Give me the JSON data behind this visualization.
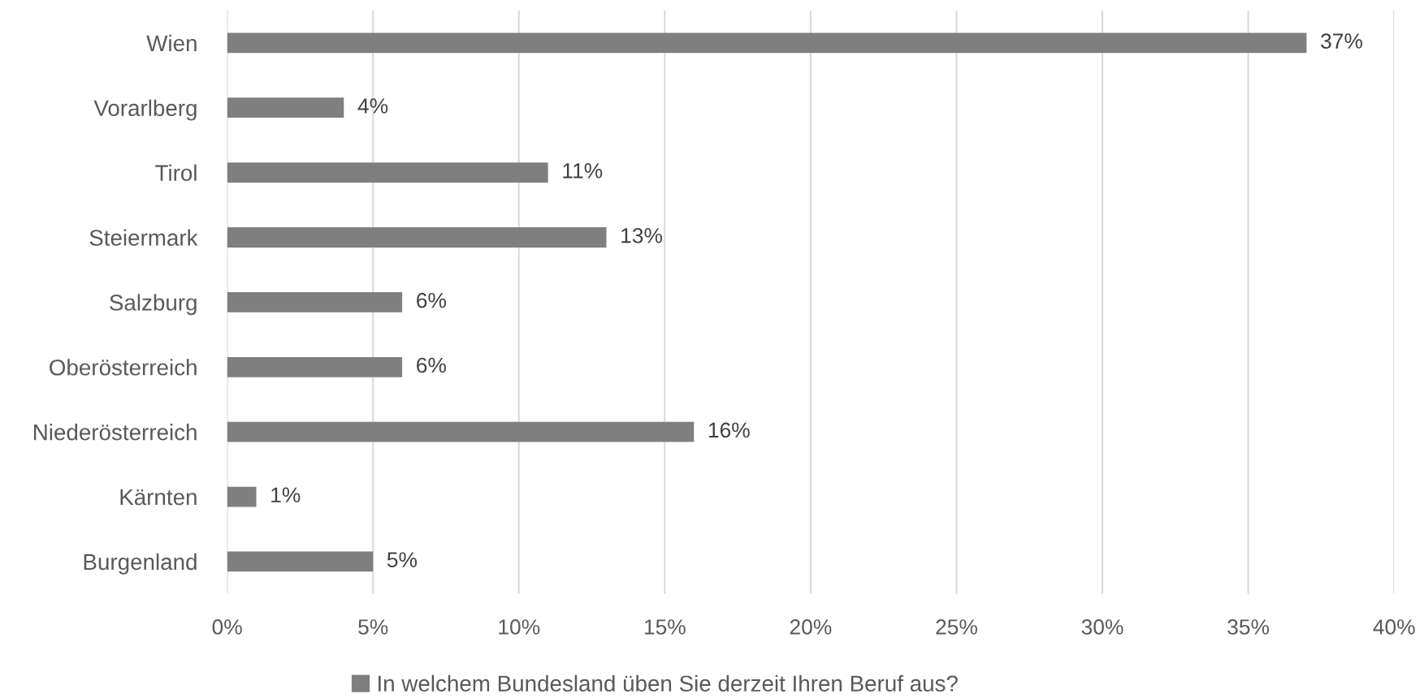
{
  "chart_data": {
    "type": "bar",
    "orientation": "horizontal",
    "categories": [
      "Wien",
      "Vorarlberg",
      "Tirol",
      "Steiermark",
      "Salzburg",
      "Oberösterreich",
      "Niederösterreich",
      "Kärnten",
      "Burgenland"
    ],
    "series": [
      {
        "name": "In welchem Bundesland üben Sie derzeit Ihren Beruf aus?",
        "color": "#7f7f7f",
        "values": [
          37,
          4,
          11,
          13,
          6,
          6,
          16,
          1,
          5
        ],
        "value_labels": [
          "37%",
          "4%",
          "11%",
          "13%",
          "6%",
          "6%",
          "16%",
          "1%",
          "5%"
        ]
      }
    ],
    "xlim": [
      0,
      40
    ],
    "xticks": [
      {
        "value": 0,
        "label": "0%"
      },
      {
        "value": 5,
        "label": "5%"
      },
      {
        "value": 10,
        "label": "10%"
      },
      {
        "value": 15,
        "label": "15%"
      },
      {
        "value": 20,
        "label": "20%"
      },
      {
        "value": 25,
        "label": "25%"
      },
      {
        "value": 30,
        "label": "30%"
      },
      {
        "value": 35,
        "label": "35%"
      },
      {
        "value": 40,
        "label": "40%"
      }
    ],
    "grid": "x",
    "legend": "bottom"
  }
}
